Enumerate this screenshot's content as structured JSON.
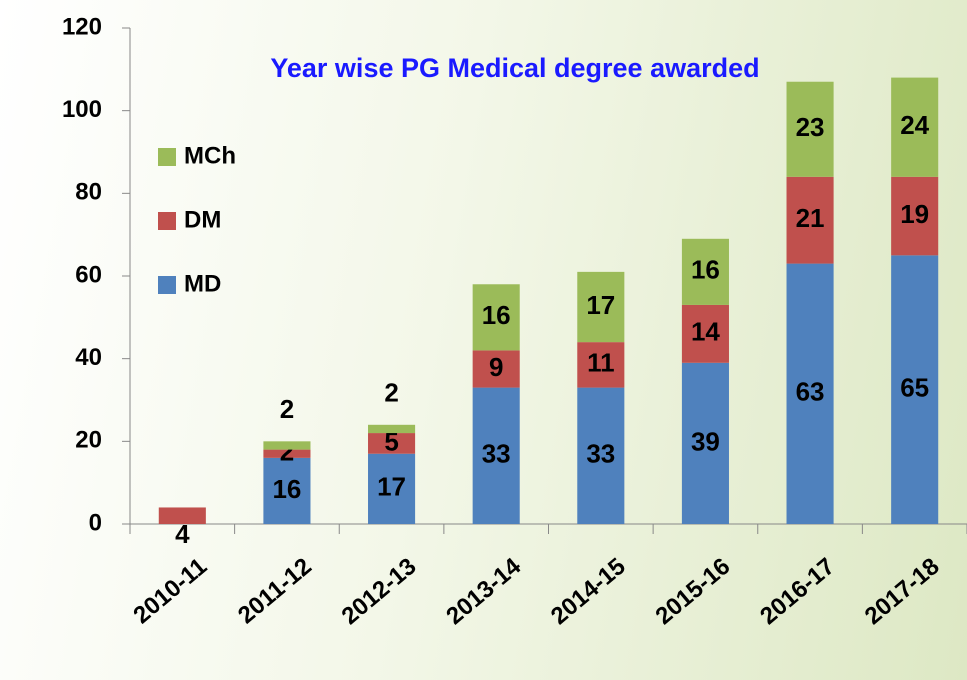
{
  "chart_data": {
    "type": "stacked-bar",
    "title": "Year wise PG Medical degree awarded",
    "categories": [
      "2010-11",
      "2011-12",
      "2012-13",
      "2013-14",
      "2014-15",
      "2015-16",
      "2016-17",
      "2017-18"
    ],
    "series": [
      {
        "name": "MD",
        "color": "#4f81bd",
        "values": [
          null,
          16,
          17,
          33,
          33,
          39,
          63,
          65
        ]
      },
      {
        "name": "DM",
        "color": "#c0504d",
        "values": [
          4,
          2,
          5,
          9,
          11,
          14,
          21,
          19
        ]
      },
      {
        "name": "MCh",
        "color": "#9bbb59",
        "values": [
          null,
          2,
          2,
          16,
          17,
          16,
          23,
          24
        ]
      }
    ],
    "ylim": [
      0,
      120
    ],
    "yticks": [
      0,
      20,
      40,
      60,
      80,
      100,
      120
    ],
    "grid": false,
    "legend": "upper-left"
  }
}
